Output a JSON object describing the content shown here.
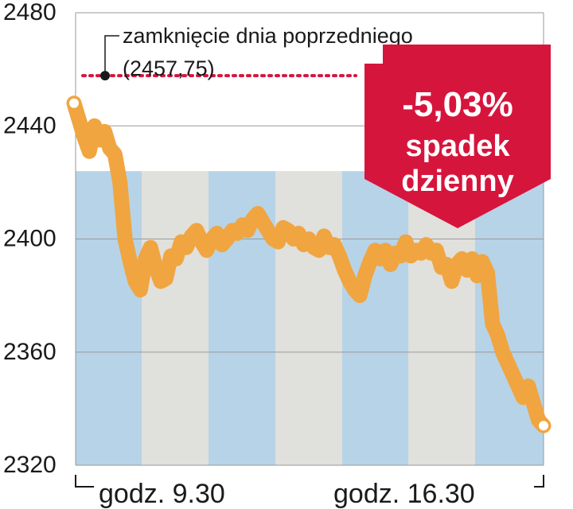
{
  "chart_data": {
    "type": "line",
    "y_ticks": [
      "2320",
      "2360",
      "2400",
      "2440",
      "2480"
    ],
    "ylim": [
      2320,
      2480
    ],
    "x_ticks": [
      "godz. 9.30",
      "godz. 16.30"
    ],
    "grid": true,
    "band_colors": [
      "#b7d3e7",
      "#e0e0dc"
    ],
    "series": [
      {
        "color": "#f0a540",
        "values": [
          2448,
          2442,
          2436,
          2431,
          2440,
          2435,
          2438,
          2432,
          2430,
          2420,
          2400,
          2392,
          2385,
          2382,
          2393,
          2397,
          2390,
          2385,
          2386,
          2394,
          2393,
          2399,
          2397,
          2401,
          2403,
          2399,
          2396,
          2400,
          2402,
          2398,
          2400,
          2403,
          2402,
          2405,
          2403,
          2407,
          2409,
          2406,
          2403,
          2400,
          2399,
          2404,
          2403,
          2400,
          2402,
          2398,
          2400,
          2397,
          2396,
          2401,
          2397,
          2398,
          2394,
          2389,
          2385,
          2382,
          2380,
          2387,
          2392,
          2396,
          2393,
          2396,
          2391,
          2395,
          2394,
          2399,
          2394,
          2396,
          2395,
          2398,
          2395,
          2396,
          2390,
          2391,
          2385,
          2391,
          2393,
          2389,
          2393,
          2387,
          2392,
          2388,
          2370,
          2366,
          2360,
          2356,
          2352,
          2348,
          2344,
          2348,
          2342,
          2336,
          2334
        ]
      }
    ],
    "annotations": {
      "prev_close_label": "zamknięcie dnia poprzedniego",
      "prev_close_value": "(2457,75)",
      "prev_close": 2457.75
    },
    "badge": {
      "value": "-5,03%",
      "line1": "spadek",
      "line2": "dzienny",
      "color": "#d6153d"
    }
  }
}
